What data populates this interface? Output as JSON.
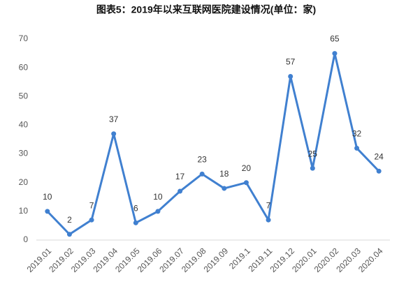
{
  "chart_data": {
    "type": "line",
    "title": "图表5：2019年以来互联网医院建设情况(单位：家)",
    "categories": [
      "2019.01",
      "2019.02",
      "2019.03",
      "2019.04",
      "2019.05",
      "2019.06",
      "2019.07",
      "2019.08",
      "2019.09",
      "2019.1",
      "2019.11",
      "2019.12",
      "2020.01",
      "2020.02",
      "2020.03",
      "2020.04"
    ],
    "values": [
      10,
      2,
      7,
      37,
      6,
      10,
      17,
      23,
      18,
      20,
      7,
      57,
      25,
      65,
      32,
      24
    ],
    "color": "#4080d0",
    "ylim": [
      0,
      70
    ],
    "yticks": [
      0,
      10,
      20,
      30,
      40,
      50,
      60,
      70
    ],
    "grid": false
  }
}
